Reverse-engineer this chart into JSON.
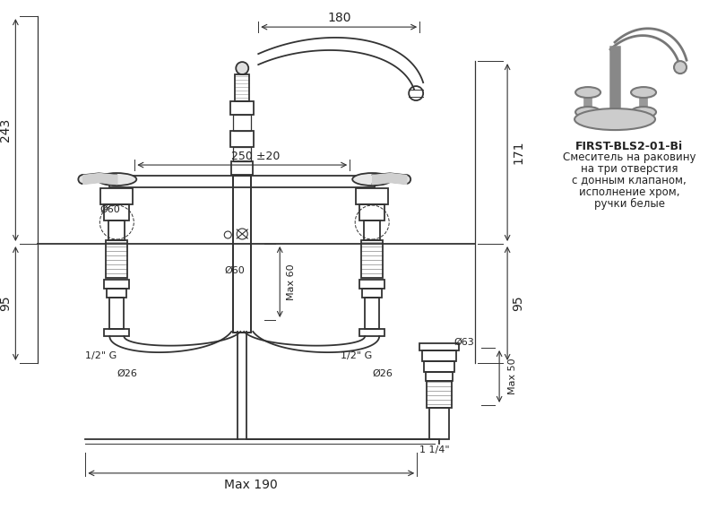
{
  "bg_color": "#ffffff",
  "line_color": "#333333",
  "dim_color": "#333333",
  "figsize": [
    8.0,
    5.69
  ],
  "dpi": 100,
  "product_code": "FIRST-BLS2-01-Bi",
  "product_desc": [
    "Смеситель на раковину",
    "на три отверстия",
    "с донным клапаном,",
    "исполнение хром,",
    "ручки белые"
  ],
  "dim_180": "180",
  "dim_243": "243",
  "dim_171": "171",
  "dim_95l": "95",
  "dim_95r": "95",
  "dim_250": "250 ±20",
  "dim_max190": "Max 190",
  "dim_max60": "Max 60",
  "dim_max50": "Max 50",
  "dim_d60l": "Ø60",
  "dim_d60c": "Ø60",
  "dim_d63": "Ø63",
  "dim_d26l": "Ø26",
  "dim_d26r": "Ø26",
  "dim_half_gl": "1/2\" G",
  "dim_half_gr": "1/2\" G",
  "dim_114": "1 1/4\""
}
